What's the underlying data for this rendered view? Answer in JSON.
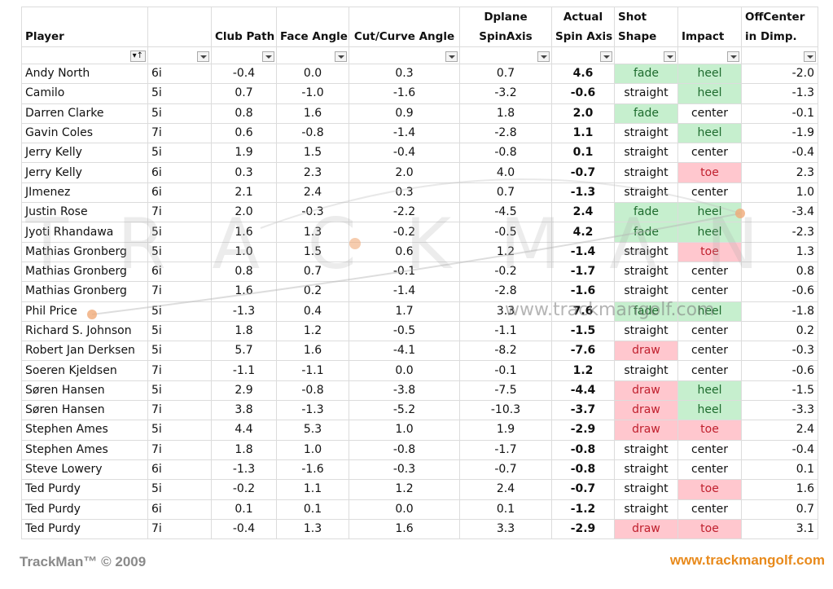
{
  "headers": {
    "player": "Player",
    "club": "",
    "club_path": "Club Path",
    "face_angle": "Face Angle",
    "cut_curve": "Cut/Curve Angle",
    "dplane_1": "Dplane",
    "dplane_2": "SpinAxis",
    "actual_1": "Actual",
    "actual_2": "Spin Axis",
    "shot_1": "Shot",
    "shot_2": "Shape",
    "impact": "Impact",
    "offcenter_1": "OffCenter",
    "offcenter_2": "in Dimp."
  },
  "rows": [
    {
      "player": "Andy North",
      "club": "6i",
      "club_path": "-0.4",
      "face": "0.0",
      "cut": "0.3",
      "dplane": "0.7",
      "actual": "4.6",
      "shape": "fade",
      "impact": "heel",
      "off": "-2.0"
    },
    {
      "player": "Camilo",
      "club": "5i",
      "club_path": "0.7",
      "face": "-1.0",
      "cut": "-1.6",
      "dplane": "-3.2",
      "actual": "-0.6",
      "shape": "straight",
      "impact": "heel",
      "off": "-1.3"
    },
    {
      "player": "Darren Clarke",
      "club": "5i",
      "club_path": "0.8",
      "face": "1.6",
      "cut": "0.9",
      "dplane": "1.8",
      "actual": "2.0",
      "shape": "fade",
      "impact": "center",
      "off": "-0.1"
    },
    {
      "player": "Gavin Coles",
      "club": "7i",
      "club_path": "0.6",
      "face": "-0.8",
      "cut": "-1.4",
      "dplane": "-2.8",
      "actual": "1.1",
      "shape": "straight",
      "impact": "heel",
      "off": "-1.9"
    },
    {
      "player": "Jerry Kelly",
      "club": "5i",
      "club_path": "1.9",
      "face": "1.5",
      "cut": "-0.4",
      "dplane": "-0.8",
      "actual": "0.1",
      "shape": "straight",
      "impact": "center",
      "off": "-0.4"
    },
    {
      "player": "Jerry Kelly",
      "club": "6i",
      "club_path": "0.3",
      "face": "2.3",
      "cut": "2.0",
      "dplane": "4.0",
      "actual": "-0.7",
      "shape": "straight",
      "impact": "toe",
      "off": "2.3"
    },
    {
      "player": "JImenez",
      "club": "6i",
      "club_path": "2.1",
      "face": "2.4",
      "cut": "0.3",
      "dplane": "0.7",
      "actual": "-1.3",
      "shape": "straight",
      "impact": "center",
      "off": "1.0"
    },
    {
      "player": "Justin Rose",
      "club": "7i",
      "club_path": "2.0",
      "face": "-0.3",
      "cut": "-2.2",
      "dplane": "-4.5",
      "actual": "2.4",
      "shape": "fade",
      "impact": "heel",
      "off": "-3.4"
    },
    {
      "player": "Jyoti Rhandawa",
      "club": "5i",
      "club_path": "1.6",
      "face": "1.3",
      "cut": "-0.2",
      "dplane": "-0.5",
      "actual": "4.2",
      "shape": "fade",
      "impact": "heel",
      "off": "-2.3"
    },
    {
      "player": "Mathias Gronberg",
      "club": "5i",
      "club_path": "1.0",
      "face": "1.5",
      "cut": "0.6",
      "dplane": "1.2",
      "actual": "-1.4",
      "shape": "straight",
      "impact": "toe",
      "off": "1.3"
    },
    {
      "player": "Mathias Gronberg",
      "club": "6i",
      "club_path": "0.8",
      "face": "0.7",
      "cut": "-0.1",
      "dplane": "-0.2",
      "actual": "-1.7",
      "shape": "straight",
      "impact": "center",
      "off": "0.8"
    },
    {
      "player": "Mathias Gronberg",
      "club": "7i",
      "club_path": "1.6",
      "face": "0.2",
      "cut": "-1.4",
      "dplane": "-2.8",
      "actual": "-1.6",
      "shape": "straight",
      "impact": "center",
      "off": "-0.6"
    },
    {
      "player": "Phil Price",
      "club": "5i",
      "club_path": "-1.3",
      "face": "0.4",
      "cut": "1.7",
      "dplane": "3.3",
      "actual": "7.6",
      "shape": "fade",
      "impact": "heel",
      "off": "-1.8"
    },
    {
      "player": "Richard S. Johnson",
      "club": "5i",
      "club_path": "1.8",
      "face": "1.2",
      "cut": "-0.5",
      "dplane": "-1.1",
      "actual": "-1.5",
      "shape": "straight",
      "impact": "center",
      "off": "0.2"
    },
    {
      "player": "Robert Jan Derksen",
      "club": "5i",
      "club_path": "5.7",
      "face": "1.6",
      "cut": "-4.1",
      "dplane": "-8.2",
      "actual": "-7.6",
      "shape": "draw",
      "impact": "center",
      "off": "-0.3"
    },
    {
      "player": "Soeren Kjeldsen",
      "club": "7i",
      "club_path": "-1.1",
      "face": "-1.1",
      "cut": "0.0",
      "dplane": "-0.1",
      "actual": "1.2",
      "shape": "straight",
      "impact": "center",
      "off": "-0.6"
    },
    {
      "player": "Søren Hansen",
      "club": "5i",
      "club_path": "2.9",
      "face": "-0.8",
      "cut": "-3.8",
      "dplane": "-7.5",
      "actual": "-4.4",
      "shape": "draw",
      "impact": "heel",
      "off": "-1.5"
    },
    {
      "player": "Søren Hansen",
      "club": "7i",
      "club_path": "3.8",
      "face": "-1.3",
      "cut": "-5.2",
      "dplane": "-10.3",
      "actual": "-3.7",
      "shape": "draw",
      "impact": "heel",
      "off": "-3.3"
    },
    {
      "player": "Stephen Ames",
      "club": "5i",
      "club_path": "4.4",
      "face": "5.3",
      "cut": "1.0",
      "dplane": "1.9",
      "actual": "-2.9",
      "shape": "draw",
      "impact": "toe",
      "off": "2.4"
    },
    {
      "player": "Stephen Ames",
      "club": "7i",
      "club_path": "1.8",
      "face": "1.0",
      "cut": "-0.8",
      "dplane": "-1.7",
      "actual": "-0.8",
      "shape": "straight",
      "impact": "center",
      "off": "-0.4"
    },
    {
      "player": "Steve Lowery",
      "club": "6i",
      "club_path": "-1.3",
      "face": "-1.6",
      "cut": "-0.3",
      "dplane": "-0.7",
      "actual": "-0.8",
      "shape": "straight",
      "impact": "center",
      "off": "0.1"
    },
    {
      "player": "Ted Purdy",
      "club": "5i",
      "club_path": "-0.2",
      "face": "1.1",
      "cut": "1.2",
      "dplane": "2.4",
      "actual": "-0.7",
      "shape": "straight",
      "impact": "toe",
      "off": "1.6"
    },
    {
      "player": "Ted Purdy",
      "club": "6i",
      "club_path": "0.1",
      "face": "0.1",
      "cut": "0.0",
      "dplane": "0.1",
      "actual": "-1.2",
      "shape": "straight",
      "impact": "center",
      "off": "0.7"
    },
    {
      "player": "Ted Purdy",
      "club": "7i",
      "club_path": "-0.4",
      "face": "1.3",
      "cut": "1.6",
      "dplane": "3.3",
      "actual": "-2.9",
      "shape": "draw",
      "impact": "toe",
      "off": "3.1"
    }
  ],
  "watermark": {
    "logo": "TRACKMAN",
    "url": "www.trackmangolf.com"
  },
  "footer": {
    "copyright": "TrackMan™ © 2009",
    "website": "www.trackmangolf.com"
  },
  "colors": {
    "green_fill": "#c6efce",
    "green_text": "#1d6b2d",
    "red_fill": "#ffc7ce",
    "red_text": "#c0202e",
    "accent": "#e88a1c"
  }
}
